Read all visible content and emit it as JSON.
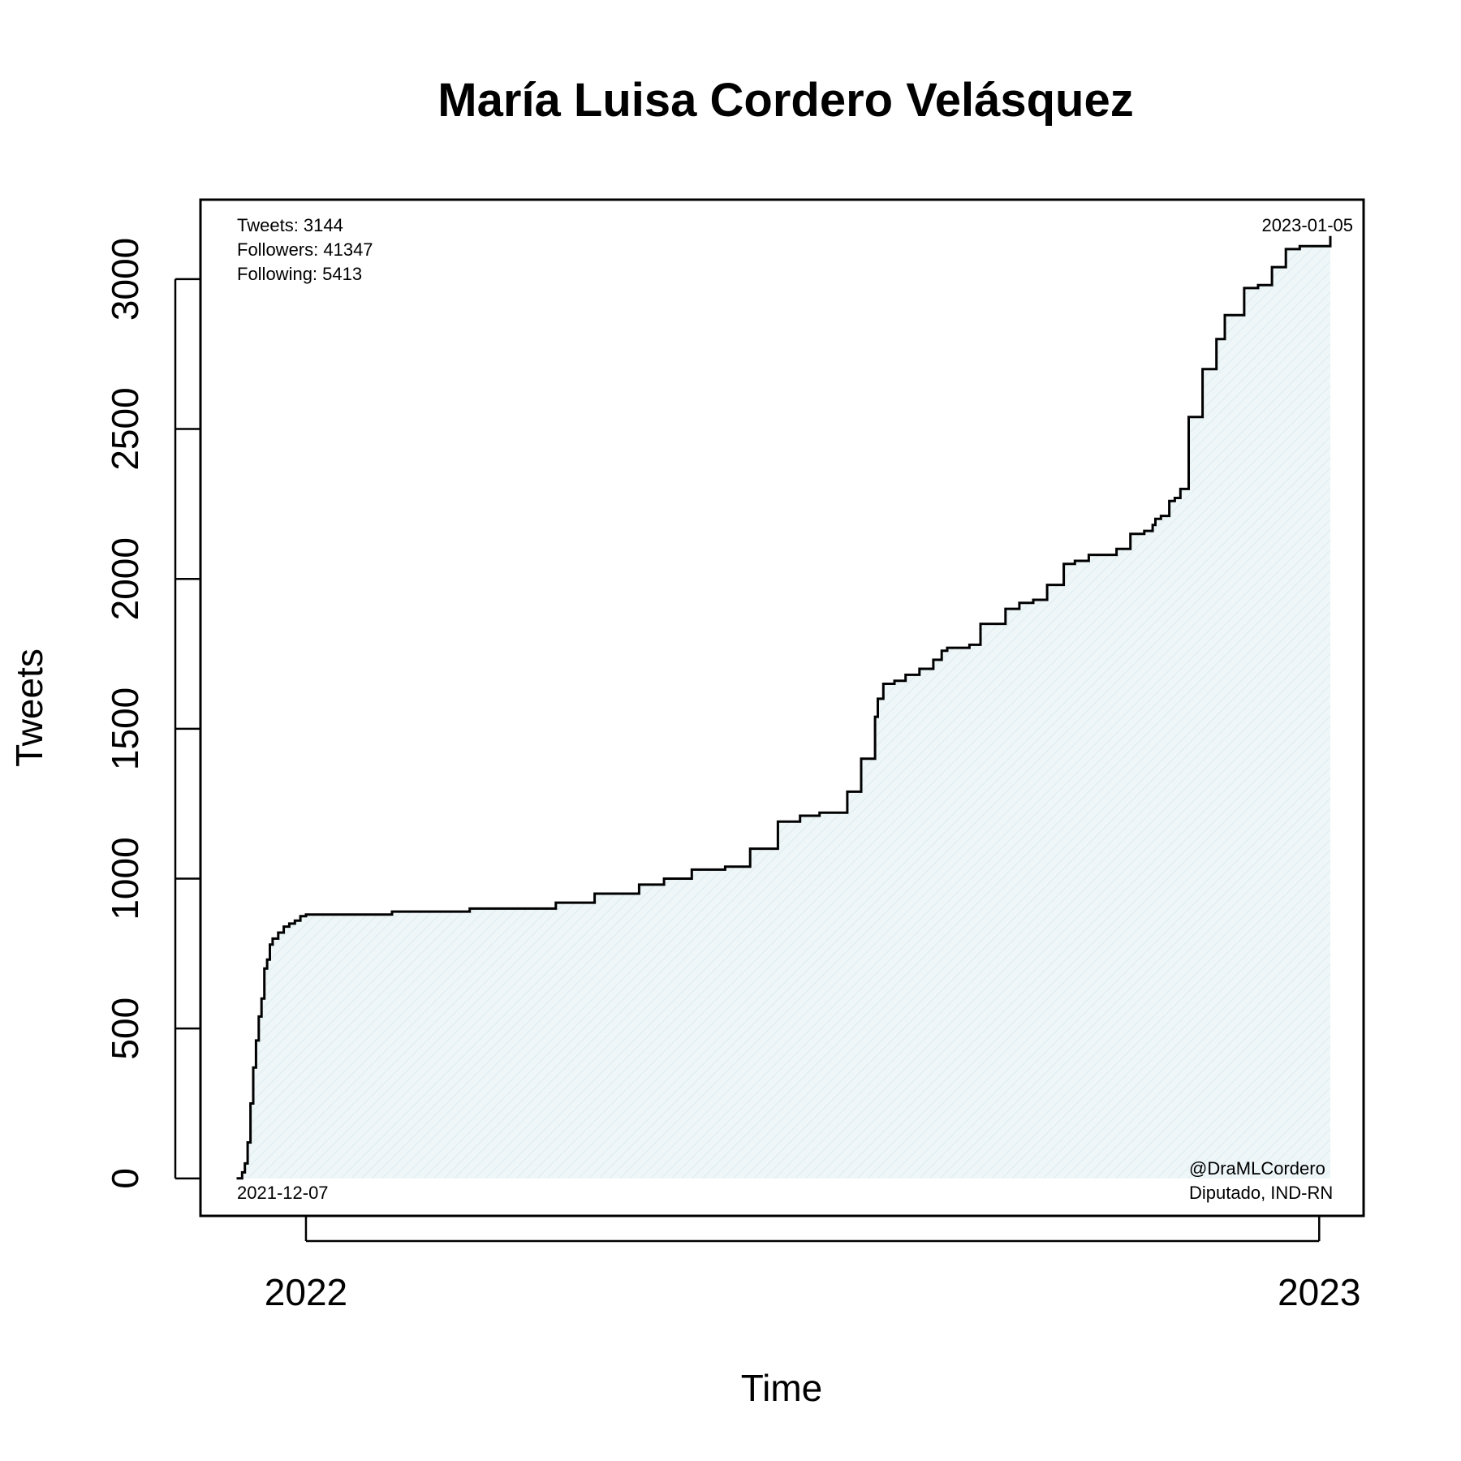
{
  "chart_data": {
    "type": "area",
    "title": "María Luisa Cordero Velásquez",
    "xlabel": "Time",
    "ylabel": "Tweets",
    "xlim": [
      "2021-11-24",
      "2023-01-17"
    ],
    "ylim": [
      -125,
      3265
    ],
    "y_ticks": [
      0,
      500,
      1000,
      1500,
      2000,
      2500,
      3000
    ],
    "x_ticks": [
      {
        "date": "2022-01-01",
        "label": "2022"
      },
      {
        "date": "2023-01-01",
        "label": "2023"
      }
    ],
    "grid": false,
    "colors": {
      "line": "#000000",
      "fill": "#eef6f8",
      "hatch": "#dcecf0"
    },
    "annotations": {
      "stats": [
        "Tweets: 3144",
        "Followers: 41347",
        "Following: 5413"
      ],
      "start_date": "2021-12-07",
      "end_date": "2023-01-05",
      "handle": "@DraMLCordero",
      "affiliation": "Diputado, IND-RN"
    },
    "series": [
      {
        "x": [
          "2021-12-07",
          "2021-12-09",
          "2021-12-10",
          "2021-12-11",
          "2021-12-12",
          "2021-12-13",
          "2021-12-14",
          "2021-12-15",
          "2021-12-16",
          "2021-12-17",
          "2021-12-18",
          "2021-12-19",
          "2021-12-20",
          "2021-12-22",
          "2021-12-24",
          "2021-12-26",
          "2021-12-28",
          "2021-12-30",
          "2022-01-01",
          "2022-01-04",
          "2022-01-06",
          "2022-01-08",
          "2022-01-10",
          "2022-02-01",
          "2022-03-01",
          "2022-04-01",
          "2022-04-15",
          "2022-05-01",
          "2022-05-10",
          "2022-05-20",
          "2022-06-01",
          "2022-06-10",
          "2022-06-20",
          "2022-06-28",
          "2022-07-05",
          "2022-07-15",
          "2022-07-20",
          "2022-07-25",
          "2022-07-26",
          "2022-07-28",
          "2022-08-01",
          "2022-08-05",
          "2022-08-10",
          "2022-08-15",
          "2022-08-18",
          "2022-08-20",
          "2022-08-25",
          "2022-08-28",
          "2022-09-01",
          "2022-09-10",
          "2022-09-15",
          "2022-09-20",
          "2022-09-25",
          "2022-10-01",
          "2022-10-05",
          "2022-10-10",
          "2022-10-20",
          "2022-10-25",
          "2022-10-30",
          "2022-11-02",
          "2022-11-03",
          "2022-11-05",
          "2022-11-08",
          "2022-11-10",
          "2022-11-12",
          "2022-11-15",
          "2022-11-20",
          "2022-11-25",
          "2022-11-28",
          "2022-12-05",
          "2022-12-10",
          "2022-12-15",
          "2022-12-20",
          "2022-12-25",
          "2023-01-05"
        ],
        "y": [
          0,
          20,
          50,
          120,
          250,
          370,
          460,
          540,
          600,
          700,
          730,
          780,
          800,
          820,
          840,
          850,
          860,
          875,
          880,
          880,
          880,
          880,
          880,
          890,
          900,
          920,
          950,
          980,
          1000,
          1030,
          1040,
          1100,
          1190,
          1210,
          1220,
          1290,
          1400,
          1540,
          1600,
          1650,
          1660,
          1680,
          1700,
          1730,
          1760,
          1770,
          1770,
          1780,
          1850,
          1900,
          1920,
          1930,
          1980,
          2050,
          2060,
          2080,
          2100,
          2150,
          2160,
          2180,
          2200,
          2210,
          2260,
          2270,
          2300,
          2540,
          2700,
          2800,
          2880,
          2970,
          2980,
          3040,
          3100,
          3110,
          3144
        ]
      }
    ]
  }
}
